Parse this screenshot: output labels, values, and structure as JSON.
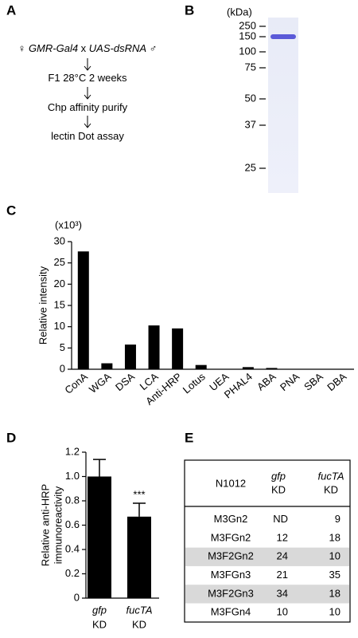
{
  "panels": {
    "a": "A",
    "b": "B",
    "c": "C",
    "d": "D",
    "e": "E"
  },
  "flow": {
    "lines": [
      [
        {
          "text": "♀ "
        },
        {
          "text": "GMR-Gal4",
          "italic": true
        },
        {
          "text": " x "
        },
        {
          "text": "UAS-dsRNA",
          "italic": true
        },
        {
          "text": " ♂"
        }
      ],
      [
        {
          "text": "F1  28°C 2 weeks"
        }
      ],
      [
        {
          "text": "Chp affinity purify"
        }
      ],
      [
        {
          "text": "lectin Dot assay"
        }
      ]
    ]
  },
  "gel": {
    "unit": "(kDa)",
    "markers": [
      250,
      150,
      100,
      75,
      50,
      37,
      25
    ]
  },
  "chart_data": [
    {
      "type": "bar",
      "unit_label": "(x10³)",
      "y_label": "Relative intensity",
      "categories": [
        "ConA",
        "WGA",
        "DSA",
        "LCA",
        "Anti-HRP",
        "Lotus",
        "UEA",
        "PHAL4",
        "ABA",
        "PNA",
        "SBA",
        "DBA"
      ],
      "values": [
        27.7,
        1.4,
        5.8,
        10.3,
        9.6,
        1.0,
        0,
        0.5,
        0.3,
        0,
        0,
        0
      ],
      "color": "#000000",
      "ylim": [
        0,
        30
      ],
      "yticks": [
        0,
        5,
        10,
        15,
        20,
        25,
        30
      ]
    },
    {
      "type": "errorbar",
      "y_label": [
        "Relative anti-HRP",
        "immunoreactivity"
      ],
      "categories": [
        "gfp",
        "fucTA"
      ],
      "category_suffix": "KD",
      "values": [
        1.0,
        0.67
      ],
      "errors": [
        0.14,
        0.11
      ],
      "annotation": "***",
      "color": "#000000",
      "ylim": [
        0,
        1.2
      ],
      "yticks": [
        0,
        0.2,
        0.4,
        0.6,
        0.8,
        {
          "value": 1,
          "label": "1.0"
        },
        1.2
      ]
    }
  ],
  "table": {
    "header": [
      "N1012",
      [
        "gfp",
        "KD"
      ],
      [
        "fucTA",
        "KD"
      ]
    ],
    "rows": [
      [
        "M3Gn2",
        "ND",
        9
      ],
      [
        "M3FGn2",
        12,
        18
      ],
      [
        "M3F2Gn2",
        24,
        10
      ],
      [
        "M3FGn3",
        21,
        35
      ],
      [
        "M3F2Gn3",
        34,
        18
      ],
      [
        "M3FGn4",
        10,
        10
      ]
    ],
    "shaded_rows": [
      2,
      4
    ]
  }
}
